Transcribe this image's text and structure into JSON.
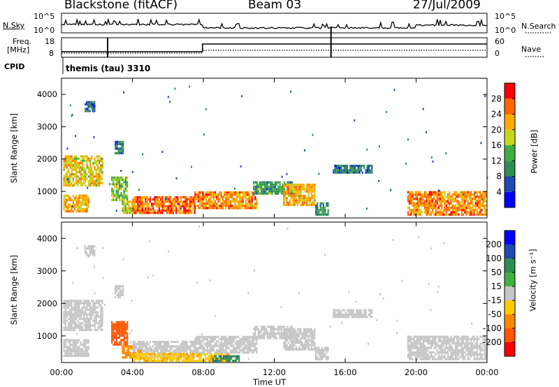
{
  "header": {
    "title": "Blackstone (fitACF)",
    "beam": "Beam 03",
    "date": "27/Jul/2009"
  },
  "status_panels": {
    "nsky_label": "N.Sky",
    "nsky_ticks": [
      "10^5",
      "10^0"
    ],
    "nsearch_label": "N.Search",
    "nsearch_ticks": [
      "10^5",
      "10^0"
    ],
    "freq_label": "Freq.",
    "freq_unit": "[MHz]",
    "freq_ticks": [
      "18",
      "8"
    ],
    "nave_label": "Nave",
    "nave_ticks": [
      "60",
      "0"
    ],
    "cpid_label": "CPID",
    "cpid_value": "themis (tau) 3310"
  },
  "chart_data": [
    {
      "type": "heatmap",
      "name": "power",
      "ylabel": "Slant Range [km]",
      "xlabel": "Time UT",
      "x_ticks": [
        "00:00",
        "04:00",
        "08:00",
        "12:00",
        "16:00",
        "20:00",
        "00:00"
      ],
      "x_tick_hours": [
        0,
        4,
        8,
        12,
        16,
        20,
        24
      ],
      "xlim": [
        0,
        24
      ],
      "y_ticks": [
        1000,
        2000,
        3000,
        4000
      ],
      "ylim": [
        180,
        4500
      ],
      "colorbar": {
        "label": "Power [dB]",
        "ticks": [
          4,
          8,
          12,
          16,
          20,
          24,
          28
        ],
        "range": [
          0,
          30
        ],
        "colors": [
          "#0000ff",
          "#1f49b4",
          "#2f8c55",
          "#3fb040",
          "#c6d61c",
          "#ffaa00",
          "#ff6600",
          "#ff0000"
        ]
      },
      "echo_regions": [
        {
          "t0": 0.1,
          "t1": 2.3,
          "r0": 1150,
          "r1": 2100,
          "level": 20
        },
        {
          "t0": 0.1,
          "t1": 1.5,
          "r0": 350,
          "r1": 900,
          "level": 22
        },
        {
          "t0": 1.3,
          "t1": 1.9,
          "r0": 3450,
          "r1": 3750,
          "level": 8
        },
        {
          "t0": 2.8,
          "t1": 3.7,
          "r0": 700,
          "r1": 1400,
          "level": 16
        },
        {
          "t0": 3.0,
          "t1": 3.5,
          "r0": 2150,
          "r1": 2550,
          "level": 8
        },
        {
          "t0": 3.4,
          "t1": 4.5,
          "r0": 300,
          "r1": 700,
          "level": 18
        },
        {
          "t0": 4.0,
          "t1": 7.5,
          "r0": 300,
          "r1": 850,
          "level": 26
        },
        {
          "t0": 7.5,
          "t1": 11.0,
          "r0": 450,
          "r1": 1000,
          "level": 24
        },
        {
          "t0": 10.8,
          "t1": 13.0,
          "r0": 900,
          "r1": 1300,
          "level": 12
        },
        {
          "t0": 12.5,
          "t1": 14.3,
          "r0": 550,
          "r1": 1200,
          "level": 22
        },
        {
          "t0": 14.3,
          "t1": 15.0,
          "r0": 250,
          "r1": 650,
          "level": 10
        },
        {
          "t0": 15.3,
          "t1": 17.5,
          "r0": 1550,
          "r1": 1800,
          "level": 8
        },
        {
          "t0": 19.5,
          "t1": 24.0,
          "r0": 250,
          "r1": 1000,
          "level": 24
        }
      ]
    },
    {
      "type": "heatmap",
      "name": "velocity",
      "ylabel": "Slant Range [km]",
      "xlabel": "Time UT",
      "x_ticks": [
        "00:00",
        "04:00",
        "08:00",
        "12:00",
        "16:00",
        "20:00",
        "00:00"
      ],
      "x_tick_hours": [
        0,
        4,
        8,
        12,
        16,
        20,
        24
      ],
      "xlim": [
        0,
        24
      ],
      "y_ticks": [
        1000,
        2000,
        3000,
        4000
      ],
      "ylim": [
        180,
        4500
      ],
      "colorbar": {
        "label": "Velocity [m s⁻¹]",
        "ticks": [
          "200",
          "100",
          "50",
          "15",
          "-15",
          "-50",
          "-100",
          "-200"
        ],
        "colors": [
          "#0000ff",
          "#1f49b4",
          "#2f8c55",
          "#3fb040",
          "#c6c6c6",
          "#ffcc00",
          "#ff8800",
          "#ff5500",
          "#ff0000"
        ]
      },
      "echo_regions": [
        {
          "t0": 0.1,
          "t1": 2.3,
          "r0": 1150,
          "r1": 2100,
          "level": 0
        },
        {
          "t0": 0.1,
          "t1": 1.5,
          "r0": 350,
          "r1": 900,
          "level": 0
        },
        {
          "t0": 1.3,
          "t1": 1.9,
          "r0": 3450,
          "r1": 3750,
          "level": 0
        },
        {
          "t0": 2.8,
          "t1": 3.7,
          "r0": 700,
          "r1": 1400,
          "level": -120
        },
        {
          "t0": 3.0,
          "t1": 3.5,
          "r0": 2150,
          "r1": 2550,
          "level": 0
        },
        {
          "t0": 3.4,
          "t1": 4.5,
          "r0": 300,
          "r1": 700,
          "level": -60
        },
        {
          "t0": 4.0,
          "t1": 7.5,
          "r0": 300,
          "r1": 850,
          "level": 0
        },
        {
          "t0": 4.0,
          "t1": 9.5,
          "r0": 200,
          "r1": 420,
          "level": -40
        },
        {
          "t0": 7.5,
          "t1": 11.0,
          "r0": 450,
          "r1": 1000,
          "level": 0
        },
        {
          "t0": 8.5,
          "t1": 10.0,
          "r0": 200,
          "r1": 350,
          "level": 40
        },
        {
          "t0": 10.8,
          "t1": 13.0,
          "r0": 900,
          "r1": 1300,
          "level": 0
        },
        {
          "t0": 12.5,
          "t1": 14.3,
          "r0": 550,
          "r1": 1200,
          "level": 0
        },
        {
          "t0": 14.3,
          "t1": 15.0,
          "r0": 250,
          "r1": 650,
          "level": 0
        },
        {
          "t0": 15.3,
          "t1": 17.5,
          "r0": 1550,
          "r1": 1800,
          "level": 0
        },
        {
          "t0": 19.5,
          "t1": 24.0,
          "r0": 250,
          "r1": 1000,
          "level": 0
        }
      ]
    }
  ]
}
